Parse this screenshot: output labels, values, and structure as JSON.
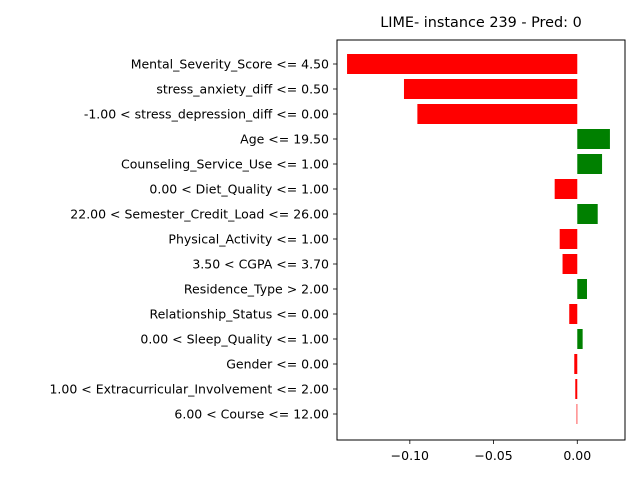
{
  "chart_data": {
    "type": "bar",
    "orientation": "horizontal",
    "title": "LIME- instance 239 - Pred: 0",
    "xlabel": "",
    "ylabel": "",
    "xlim": [
      -0.1435,
      0.0285
    ],
    "xticks": [
      -0.1,
      -0.05,
      0.0
    ],
    "xtick_labels": [
      "−0.10",
      "−0.05",
      "0.00"
    ],
    "grid": false,
    "legend": "none",
    "colors": {
      "negative": "#ff0000",
      "positive": "#008000"
    },
    "categories": [
      "Mental_Severity_Score <= 4.50",
      "stress_anxiety_diff <= 0.50",
      "-1.00 < stress_depression_diff <= 0.00",
      "Age <= 19.50",
      "Counseling_Service_Use <= 1.00",
      "0.00 < Diet_Quality <= 1.00",
      "22.00 < Semester_Credit_Load <= 26.00",
      "Physical_Activity <= 1.00",
      "3.50 < CGPA <= 3.70",
      "Residence_Type > 2.00",
      "Relationship_Status <= 0.00",
      "0.00 < Sleep_Quality <= 1.00",
      "Gender <= 0.00",
      "1.00 < Extracurricular_Involvement <= 2.00",
      "6.00 < Course <= 12.00"
    ],
    "values": [
      -0.1375,
      -0.1035,
      -0.0955,
      0.0195,
      0.0148,
      -0.0135,
      0.0122,
      -0.0105,
      -0.0088,
      0.0058,
      -0.0048,
      0.0032,
      -0.0018,
      -0.0012,
      -0.0004
    ]
  }
}
